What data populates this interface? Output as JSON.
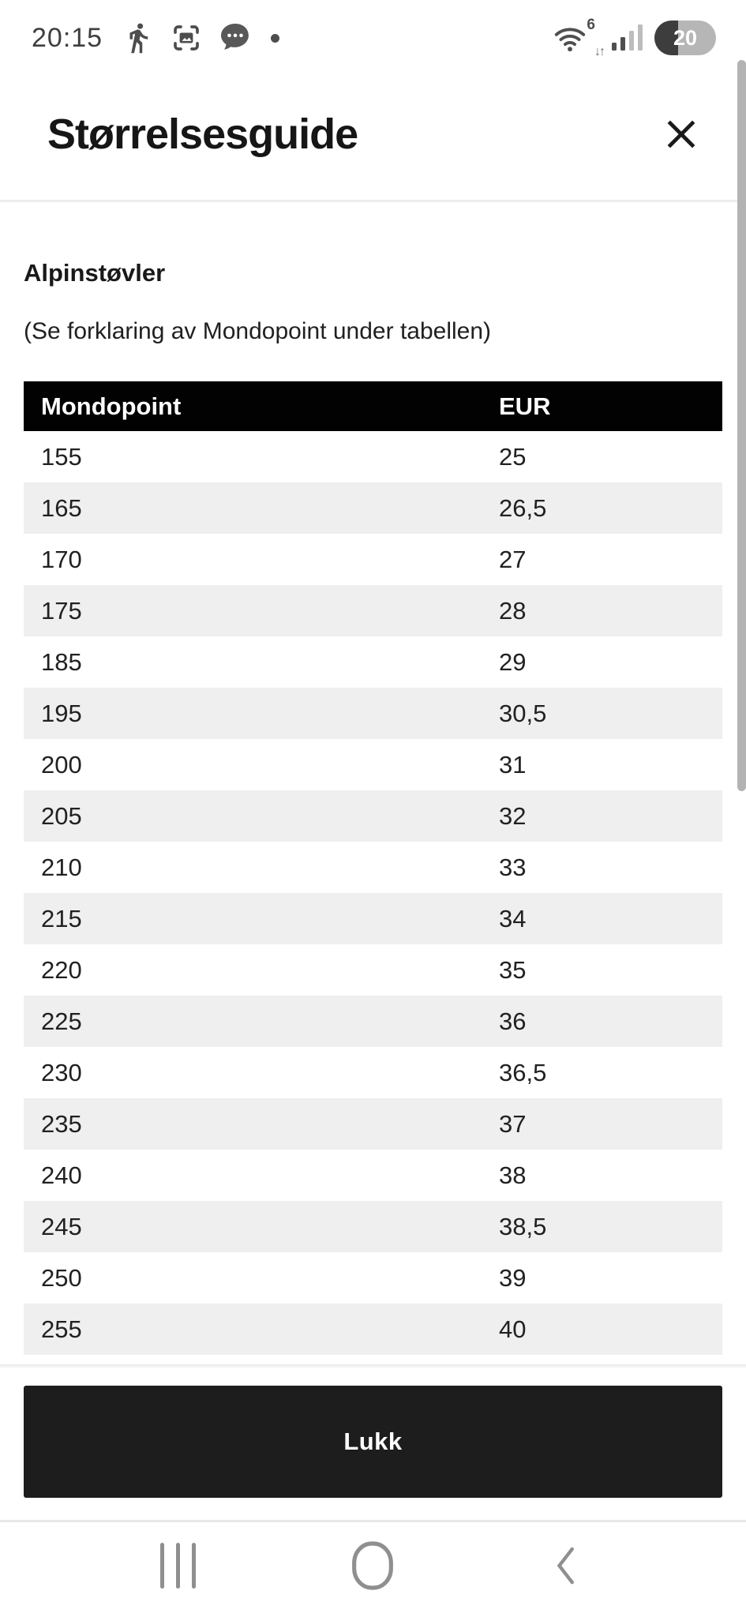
{
  "status_bar": {
    "time": "20:15",
    "left_icons": [
      "walking-person-icon",
      "smart-capture-icon",
      "chat-bubble-icon",
      "notification-dot"
    ],
    "wifi_standard": "6",
    "wifi_arrows": "↓↑",
    "signal_icon": "signal-bars-icon",
    "battery_percent": "20"
  },
  "header": {
    "title": "Størrelsesguide",
    "close_icon": "close-icon"
  },
  "content": {
    "section_title": "Alpinstøvler",
    "note": "(Se forklaring av Mondopoint under tabellen)"
  },
  "table": {
    "columns": [
      "Mondopoint",
      "EUR"
    ],
    "rows": [
      [
        "155",
        "25"
      ],
      [
        "165",
        "26,5"
      ],
      [
        "170",
        "27"
      ],
      [
        "175",
        "28"
      ],
      [
        "185",
        "29"
      ],
      [
        "195",
        "30,5"
      ],
      [
        "200",
        "31"
      ],
      [
        "205",
        "32"
      ],
      [
        "210",
        "33"
      ],
      [
        "215",
        "34"
      ],
      [
        "220",
        "35"
      ],
      [
        "225",
        "36"
      ],
      [
        "230",
        "36,5"
      ],
      [
        "235",
        "37"
      ],
      [
        "240",
        "38"
      ],
      [
        "245",
        "38,5"
      ],
      [
        "250",
        "39"
      ],
      [
        "255",
        "40"
      ]
    ]
  },
  "footer": {
    "close_button_label": "Lukk"
  },
  "nav_bar": {
    "icons": [
      "recents-icon",
      "home-icon",
      "back-icon"
    ]
  },
  "colors": {
    "table_header_bg": "#000000",
    "row_alt_bg": "#efefef",
    "button_bg": "#1d1d1d",
    "divider": "#ededed",
    "nav_icon": "#8f8f8f",
    "status_icon": "#4f4f4f",
    "scrollbar": "#b3b3b3"
  }
}
